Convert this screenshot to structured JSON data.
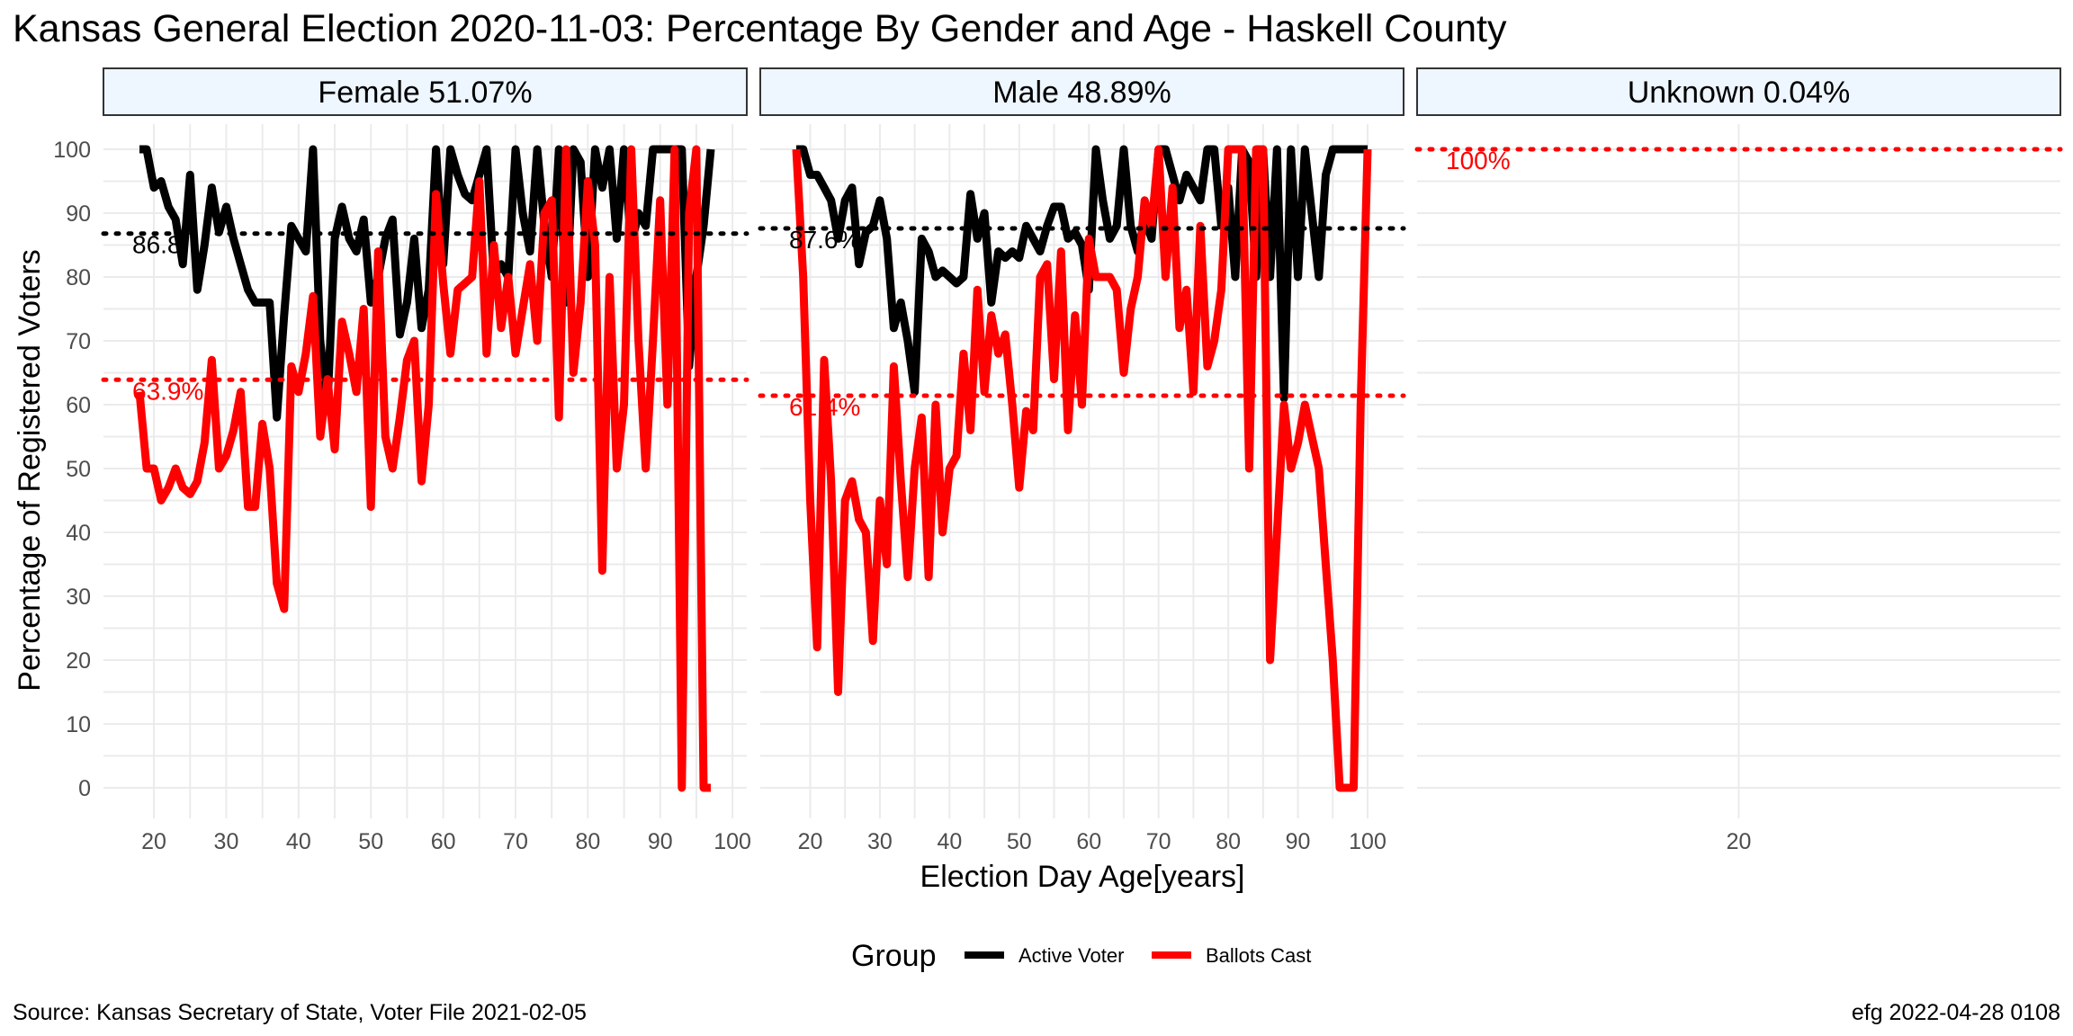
{
  "title": "Kansas General Election 2020-11-03:  Percentage By Gender and Age - Haskell County",
  "caption_left": "Source:  Kansas Secretary of State, Voter File  2021-02-05",
  "caption_right": "efg 2022-04-28 0108",
  "colors": {
    "active": "#000000",
    "ballots": "#ff0000",
    "strip_fill": "#eef6ff"
  },
  "chart_data": {
    "type": "line",
    "xlabel": "Election Day Age[years]",
    "ylabel": "Percentage of Registered Voters",
    "ylim": [
      0,
      100
    ],
    "yticks": [
      0,
      10,
      20,
      30,
      40,
      50,
      60,
      70,
      80,
      90,
      100
    ],
    "legend": {
      "title": "Group",
      "position": "bottom",
      "entries": [
        "Active Voter",
        "Ballots Cast"
      ]
    },
    "grid": true,
    "panels": [
      {
        "strip": "Female 51.07%",
        "xlim": [
          18,
          97
        ],
        "xticks": [
          20,
          30,
          40,
          50,
          60,
          70,
          80,
          90,
          100
        ],
        "ref_lines": [
          {
            "series": "Active Voter",
            "value": 86.8,
            "label": "86.8"
          },
          {
            "series": "Ballots Cast",
            "value": 63.9,
            "label": "63.9%"
          }
        ],
        "series": [
          {
            "name": "Active Voter",
            "x": [
              18,
              19,
              20,
              21,
              22,
              23,
              24,
              25,
              26,
              27,
              28,
              29,
              30,
              31,
              32,
              33,
              34,
              35,
              36,
              37,
              38,
              39,
              40,
              41,
              42,
              43,
              44,
              45,
              46,
              47,
              48,
              49,
              50,
              51,
              52,
              53,
              54,
              55,
              56,
              57,
              58,
              59,
              60,
              61,
              62,
              63,
              64,
              65,
              66,
              67,
              68,
              69,
              70,
              71,
              72,
              73,
              74,
              75,
              76,
              77,
              78,
              79,
              80,
              81,
              82,
              83,
              84,
              85,
              86,
              87,
              88,
              89,
              90,
              91,
              92,
              93,
              94,
              95,
              96,
              97
            ],
            "y": [
              100,
              100,
              94,
              95,
              91,
              89,
              82,
              96,
              78,
              85,
              94,
              87,
              91,
              86,
              82,
              78,
              76,
              76,
              76,
              58,
              74,
              88,
              86,
              84,
              100,
              70,
              60,
              86,
              91,
              86,
              84,
              89,
              76,
              80,
              86,
              89,
              71,
              76,
              86,
              72,
              78,
              100,
              82,
              100,
              96,
              93,
              92,
              96,
              100,
              80,
              82,
              80,
              100,
              90,
              84,
              100,
              88,
              80,
              100,
              76,
              100,
              98,
              80,
              100,
              94,
              100,
              86,
              100,
              85,
              90,
              88,
              100,
              100,
              100,
              100,
              100,
              66,
              80,
              88,
              100
            ]
          },
          {
            "name": "Ballots Cast",
            "x": [
              18,
              19,
              20,
              21,
              22,
              23,
              24,
              25,
              26,
              27,
              28,
              29,
              30,
              31,
              32,
              33,
              34,
              35,
              36,
              37,
              38,
              39,
              40,
              41,
              42,
              43,
              44,
              45,
              46,
              47,
              48,
              49,
              50,
              51,
              52,
              53,
              54,
              55,
              56,
              57,
              58,
              59,
              60,
              61,
              62,
              63,
              64,
              65,
              66,
              67,
              68,
              69,
              70,
              71,
              72,
              73,
              74,
              75,
              76,
              77,
              78,
              79,
              80,
              81,
              82,
              83,
              84,
              85,
              86,
              87,
              88,
              89,
              90,
              91,
              92,
              93,
              94,
              95,
              96,
              97
            ],
            "y": [
              62,
              50,
              50,
              45,
              47,
              50,
              47,
              46,
              48,
              54,
              67,
              50,
              52,
              56,
              62,
              44,
              44,
              57,
              50,
              32,
              28,
              66,
              62,
              68,
              77,
              55,
              64,
              53,
              73,
              68,
              62,
              75,
              44,
              84,
              55,
              50,
              58,
              67,
              70,
              48,
              60,
              93,
              79,
              68,
              78,
              79,
              80,
              95,
              68,
              85,
              72,
              80,
              68,
              75,
              82,
              70,
              90,
              92,
              58,
              100,
              65,
              76,
              95,
              85,
              34,
              80,
              50,
              60,
              100,
              70,
              50,
              70,
              92,
              60,
              100,
              0,
              90,
              100,
              0,
              0
            ]
          }
        ]
      },
      {
        "strip": "Male 48.89%",
        "xlim": [
          18,
          100
        ],
        "xticks": [
          20,
          30,
          40,
          50,
          60,
          70,
          80,
          90,
          100
        ],
        "ref_lines": [
          {
            "series": "Active Voter",
            "value": 87.6,
            "label": "87.6%"
          },
          {
            "series": "Ballots Cast",
            "value": 61.4,
            "label": "61.4%"
          }
        ],
        "series": [
          {
            "name": "Active Voter",
            "x": [
              18,
              19,
              20,
              21,
              22,
              23,
              24,
              25,
              26,
              27,
              28,
              29,
              30,
              31,
              32,
              33,
              34,
              35,
              36,
              37,
              38,
              39,
              40,
              41,
              42,
              43,
              44,
              45,
              46,
              47,
              48,
              49,
              50,
              51,
              52,
              53,
              54,
              55,
              56,
              57,
              58,
              59,
              60,
              61,
              62,
              63,
              64,
              65,
              66,
              67,
              68,
              69,
              70,
              71,
              72,
              73,
              74,
              75,
              76,
              77,
              78,
              79,
              80,
              81,
              82,
              83,
              84,
              85,
              86,
              87,
              88,
              89,
              90,
              91,
              92,
              93,
              94,
              95,
              96,
              97,
              98,
              99,
              100
            ],
            "y": [
              100,
              100,
              96,
              96,
              94,
              92,
              86,
              92,
              94,
              82,
              87,
              88,
              92,
              86,
              72,
              76,
              70,
              62,
              86,
              84,
              80,
              81,
              80,
              79,
              80,
              93,
              86,
              90,
              76,
              84,
              83,
              84,
              83,
              88,
              86,
              84,
              88,
              91,
              91,
              86,
              87,
              85,
              78,
              100,
              92,
              86,
              88,
              100,
              88,
              84,
              89,
              86,
              100,
              100,
              96,
              92,
              96,
              94,
              92,
              100,
              100,
              88,
              94,
              80,
              100,
              98,
              80,
              100,
              80,
              100,
              61,
              100,
              80,
              100,
              90,
              80,
              96,
              100,
              100,
              100,
              100,
              100,
              100
            ]
          },
          {
            "name": "Ballots Cast",
            "x": [
              18,
              19,
              20,
              21,
              22,
              23,
              24,
              25,
              26,
              27,
              28,
              29,
              30,
              31,
              32,
              33,
              34,
              35,
              36,
              37,
              38,
              39,
              40,
              41,
              42,
              43,
              44,
              45,
              46,
              47,
              48,
              49,
              50,
              51,
              52,
              53,
              54,
              55,
              56,
              57,
              58,
              59,
              60,
              61,
              62,
              63,
              64,
              65,
              66,
              67,
              68,
              69,
              70,
              71,
              72,
              73,
              74,
              75,
              76,
              77,
              78,
              79,
              80,
              81,
              82,
              83,
              84,
              85,
              86,
              87,
              88,
              89,
              90,
              91,
              92,
              93,
              94,
              95,
              96,
              97,
              98,
              99,
              100
            ],
            "y": [
              100,
              80,
              45,
              22,
              67,
              48,
              15,
              45,
              48,
              42,
              40,
              23,
              45,
              35,
              66,
              48,
              33,
              50,
              58,
              33,
              60,
              40,
              50,
              52,
              68,
              56,
              78,
              62,
              74,
              68,
              71,
              60,
              47,
              59,
              56,
              80,
              82,
              64,
              84,
              56,
              74,
              60,
              86,
              80,
              80,
              80,
              78,
              65,
              75,
              80,
              92,
              88,
              100,
              80,
              94,
              72,
              78,
              62,
              88,
              66,
              70,
              78,
              100,
              100,
              100,
              50,
              100,
              100,
              20,
              40,
              60,
              50,
              54,
              60,
              55,
              50,
              35,
              20,
              0,
              0,
              0,
              60,
              100
            ]
          }
        ]
      },
      {
        "strip": "Unknown 0.04%",
        "xlim": [
          19,
          21
        ],
        "xticks": [
          20
        ],
        "ref_lines": [
          {
            "series": "Ballots Cast",
            "value": 100,
            "label": "100%"
          }
        ],
        "series": [
          {
            "name": "Active Voter",
            "x": [
              20
            ],
            "y": [
              100
            ]
          },
          {
            "name": "Ballots Cast",
            "x": [
              20
            ],
            "y": [
              100
            ]
          }
        ]
      }
    ]
  }
}
